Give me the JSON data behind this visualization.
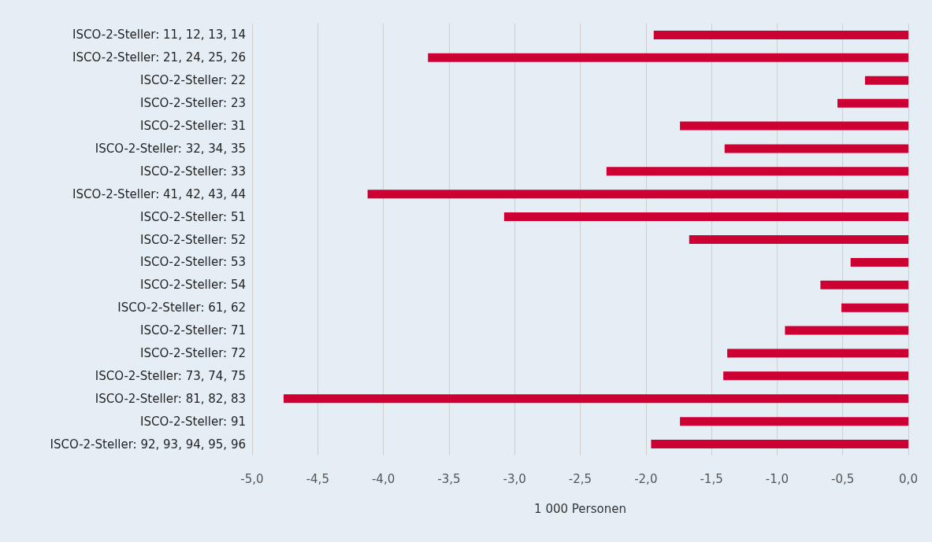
{
  "chart_data": {
    "type": "bar",
    "orientation": "horizontal",
    "xlabel": "1 000 Personen",
    "categories": [
      "ISCO-2-Steller: 11, 12, 13, 14",
      "ISCO-2-Steller: 21, 24, 25, 26",
      "ISCO-2-Steller: 22",
      "ISCO-2-Steller: 23",
      "ISCO-2-Steller: 31",
      "ISCO-2-Steller: 32, 34, 35",
      "ISCO-2-Steller: 33",
      "ISCO-2-Steller: 41, 42, 43, 44",
      "ISCO-2-Steller: 51",
      "ISCO-2-Steller: 52",
      "ISCO-2-Steller: 53",
      "ISCO-2-Steller: 54",
      "ISCO-2-Steller: 61, 62",
      "ISCO-2-Steller: 71",
      "ISCO-2-Steller: 72",
      "ISCO-2-Steller: 73, 74, 75",
      "ISCO-2-Steller: 81, 82, 83",
      "ISCO-2-Steller: 91",
      "ISCO-2-Steller: 92, 93, 94, 95, 96"
    ],
    "values": [
      -1.94,
      -3.66,
      -0.33,
      -0.54,
      -1.74,
      -1.4,
      -2.3,
      -4.12,
      -3.08,
      -1.67,
      -0.44,
      -0.67,
      -0.51,
      -0.94,
      -1.38,
      -1.41,
      -4.76,
      -1.74,
      -1.96
    ],
    "color": "#cc0033",
    "xlim": [
      -5,
      0
    ],
    "xticks": [
      {
        "value": -5,
        "label": "-5,0"
      },
      {
        "value": -4.5,
        "label": "-4,5"
      },
      {
        "value": -4,
        "label": "-4,0"
      },
      {
        "value": -3.5,
        "label": "-3,5"
      },
      {
        "value": -3,
        "label": "-3,0"
      },
      {
        "value": -2.5,
        "label": "-2,5"
      },
      {
        "value": -2,
        "label": "-2,0"
      },
      {
        "value": -1.5,
        "label": "-1,5"
      },
      {
        "value": -1,
        "label": "-1,0"
      },
      {
        "value": -0.5,
        "label": "-0,5"
      },
      {
        "value": 0,
        "label": "0,0"
      }
    ],
    "grid": "x"
  }
}
